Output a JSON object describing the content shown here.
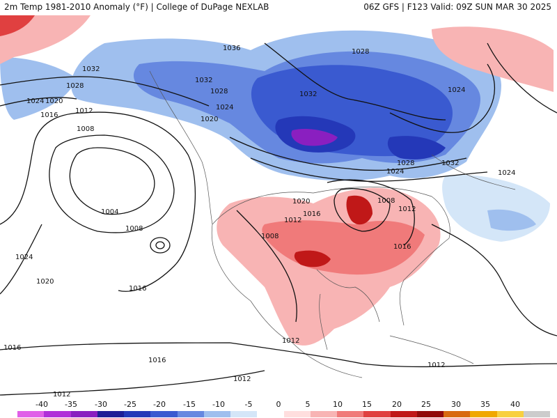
{
  "header": {
    "left": "2m Temp 1981-2010 Anomaly (°F) | College of DuPage NEXLAB",
    "right": "06Z GFS | F123 Valid: 09Z SUN MAR 30 2025"
  },
  "legend": {
    "ticks": [
      "-40",
      "-35",
      "-30",
      "-25",
      "-20",
      "-15",
      "-10",
      "-5",
      "0",
      "5",
      "10",
      "15",
      "20",
      "25",
      "30",
      "35",
      "40"
    ],
    "colors": [
      "#e060e8",
      "#b030d8",
      "#8a1fc0",
      "#1e1e96",
      "#2438b8",
      "#3a5ad0",
      "#6688e0",
      "#9fbfee",
      "#d4e6f8",
      "#ffffff",
      "#ffdede",
      "#f8b4b4",
      "#f07a7a",
      "#e04040",
      "#c01818",
      "#900a0a",
      "#d86a10",
      "#f0a800",
      "#f8d040",
      "#cccccc"
    ]
  },
  "map": {
    "contour_labels": [
      {
        "text": "1036"
      },
      {
        "text": "1028"
      },
      {
        "text": "1032"
      },
      {
        "text": "1032"
      },
      {
        "text": "1028"
      },
      {
        "text": "1028"
      },
      {
        "text": "1024"
      },
      {
        "text": "1020"
      },
      {
        "text": "1012"
      },
      {
        "text": "1016"
      },
      {
        "text": "1024"
      },
      {
        "text": "1020"
      },
      {
        "text": "1032"
      },
      {
        "text": "1024"
      },
      {
        "text": "1024"
      },
      {
        "text": "1008"
      },
      {
        "text": "1004"
      },
      {
        "text": "1008"
      },
      {
        "text": "1020"
      },
      {
        "text": "1016"
      },
      {
        "text": "1012"
      },
      {
        "text": "1008"
      },
      {
        "text": "1008"
      },
      {
        "text": "1012"
      },
      {
        "text": "1016"
      },
      {
        "text": "1024"
      },
      {
        "text": "1024"
      },
      {
        "text": "1020"
      },
      {
        "text": "1016"
      },
      {
        "text": "1012"
      },
      {
        "text": "1016"
      },
      {
        "text": "1016"
      },
      {
        "text": "1012"
      },
      {
        "text": "1012"
      },
      {
        "text": "1012"
      },
      {
        "text": "1032"
      },
      {
        "text": "1028"
      }
    ]
  }
}
